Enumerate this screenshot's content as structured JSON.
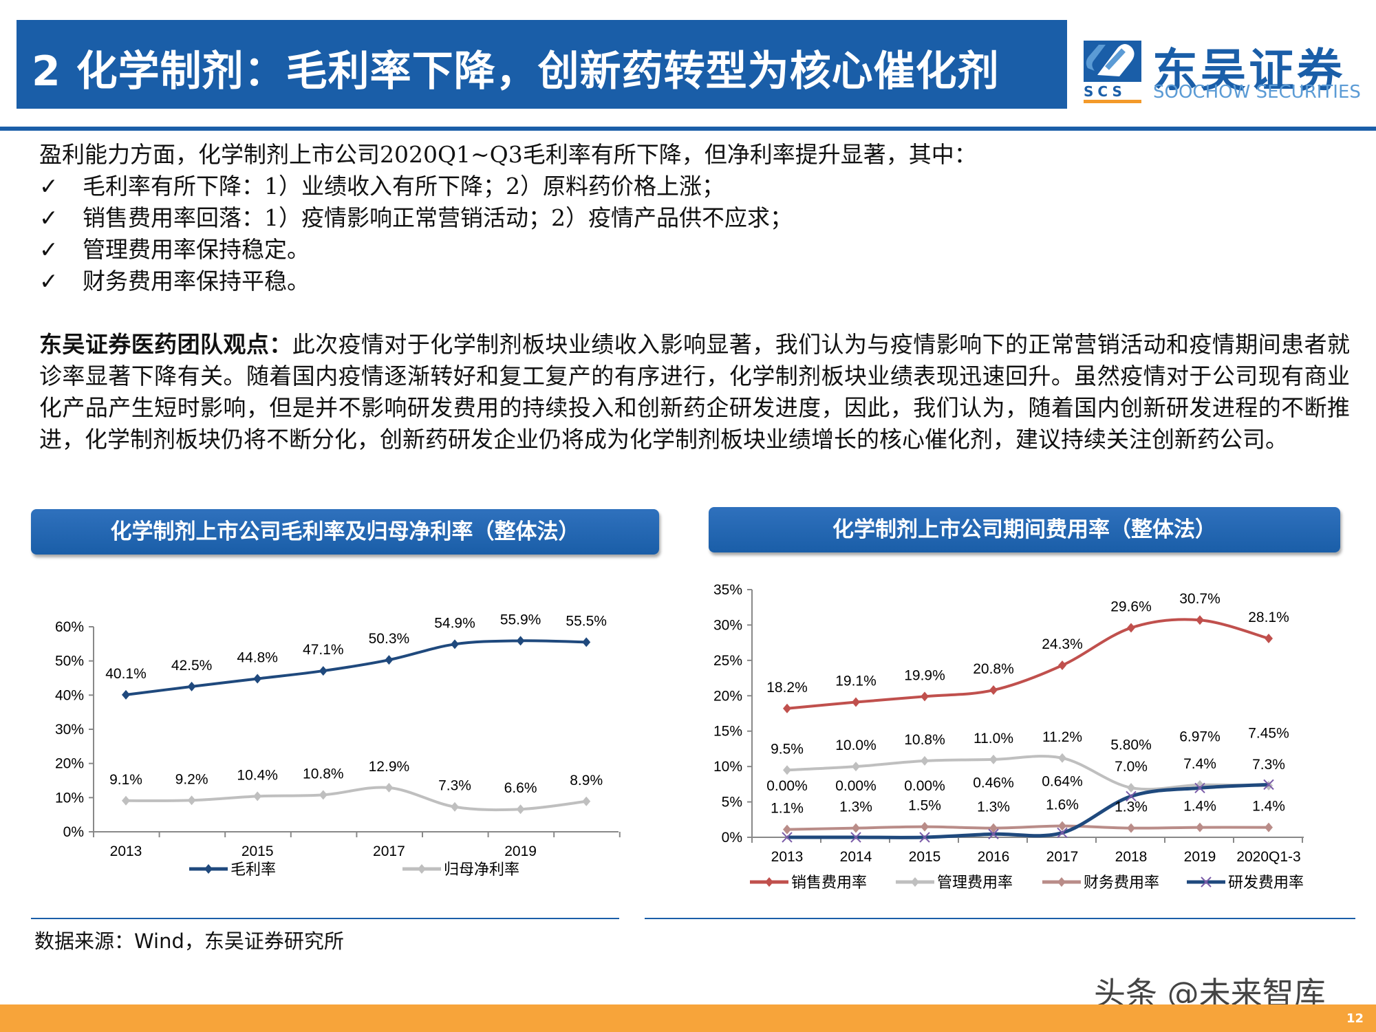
{
  "header": {
    "title": "2 化学制剂：毛利率下降，创新药转型为核心催化剂",
    "logo_cn": "东吴证券",
    "logo_en": "SOOCHOW SECURITIES",
    "logo_abbr": "SCS"
  },
  "body": {
    "intro": "盈利能力方面，化学制剂上市公司2020Q1~Q3毛利率有所下降，但净利率提升显著，其中：",
    "check_mark": "✓",
    "bullets": [
      "毛利率有所下降：1）业绩收入有所下降；2）原料药价格上涨；",
      "销售费用率回落：1）疫情影响正常营销活动；2）疫情产品供不应求；",
      "管理费用率保持稳定。",
      "财务费用率保持平稳。"
    ],
    "view_label": "东吴证券医药团队观点：",
    "view_text": "此次疫情对于化学制剂板块业绩收入影响显著，我们认为与疫情影响下的正常营销活动和疫情期间患者就诊率显著下降有关。随着国内疫情逐渐转好和复工复产的有序进行，化学制剂板块业绩表现迅速回升。虽然疫情对于公司现有商业化产品产生短时影响，但是并不影响研发费用的持续投入和创新药企研发进度，因此，我们认为，随着国内创新研发进程的不断推进，化学制剂板块仍将不断分化，创新药研发企业仍将成为化学制剂板块业绩增长的核心催化剂，建议持续关注创新药公司。"
  },
  "chart_data": [
    {
      "type": "line",
      "title": "化学制剂上市公司毛利率及归母净利率（整体法）",
      "categories": [
        "2013",
        "",
        "2015",
        "",
        "2017",
        "",
        "2019",
        ""
      ],
      "yticks": [
        "0%",
        "10%",
        "20%",
        "30%",
        "40%",
        "50%",
        "60%"
      ],
      "ylim": [
        0,
        60
      ],
      "unit": "%",
      "legend": "bottom",
      "grid": false,
      "series": [
        {
          "name": "毛利率",
          "color": "#1f497d",
          "marker": "diamond",
          "values": [
            40.1,
            42.5,
            44.8,
            47.1,
            50.3,
            54.9,
            55.9,
            55.5
          ],
          "labels": [
            "40.1%",
            "42.5%",
            "44.8%",
            "47.1%",
            "50.3%",
            "54.9%",
            "55.9%",
            "55.5%"
          ]
        },
        {
          "name": "归母净利率",
          "color": "#bfbfbf",
          "marker": "diamond",
          "values": [
            9.1,
            9.2,
            10.4,
            10.8,
            12.9,
            7.3,
            6.6,
            8.9
          ],
          "labels": [
            "9.1%",
            "9.2%",
            "10.4%",
            "10.8%",
            "12.9%",
            "7.3%",
            "6.6%",
            "8.9%"
          ]
        }
      ]
    },
    {
      "type": "line",
      "title": "化学制剂上市公司期间费用率（整体法）",
      "categories": [
        "2013",
        "2014",
        "2015",
        "2016",
        "2017",
        "2018",
        "2019",
        "2020Q1-3"
      ],
      "yticks": [
        "0%",
        "5%",
        "10%",
        "15%",
        "20%",
        "25%",
        "30%",
        "35%"
      ],
      "ylim": [
        0,
        35
      ],
      "unit": "%",
      "legend": "bottom",
      "grid": false,
      "series": [
        {
          "name": "销售费用率",
          "color": "#c0504d",
          "marker": "diamond",
          "values": [
            18.2,
            19.1,
            19.9,
            20.8,
            24.3,
            29.6,
            30.7,
            28.1
          ],
          "labels": [
            "18.2%",
            "19.1%",
            "19.9%",
            "20.8%",
            "24.3%",
            "29.6%",
            "30.7%",
            "28.1%"
          ]
        },
        {
          "name": "管理费用率",
          "color": "#bfbfbf",
          "marker": "diamond",
          "values": [
            9.5,
            10.0,
            10.8,
            11.0,
            11.2,
            7.0,
            7.4,
            7.3
          ],
          "labels": [
            "9.5%",
            "10.0%",
            "10.8%",
            "11.0%",
            "11.2%",
            "7.0%",
            "7.4%",
            "7.3%"
          ]
        },
        {
          "name": "财务费用率",
          "color": "#b98c88",
          "marker": "diamond",
          "values": [
            1.1,
            1.3,
            1.5,
            1.3,
            1.6,
            1.3,
            1.4,
            1.4
          ],
          "labels": [
            "1.1%",
            "1.3%",
            "1.5%",
            "1.3%",
            "1.6%",
            "1.3%",
            "1.4%",
            "1.4%"
          ]
        },
        {
          "name": "研发费用率",
          "color": "#1f497d",
          "marker": "x",
          "values": [
            0.0,
            0.0,
            0.0,
            0.46,
            0.64,
            5.8,
            6.97,
            7.45
          ],
          "labels": [
            "0.00%",
            "0.00%",
            "0.00%",
            "0.46%",
            "0.64%",
            "5.80%",
            "6.97%",
            "7.45%"
          ]
        }
      ]
    }
  ],
  "source": "数据来源：Wind，东吴证券研究所",
  "watermark": "头条 @未来智库",
  "page_number": "12",
  "colors": {
    "brand_blue": "#1a5ea8",
    "footer_orange": "#f7a43a"
  }
}
